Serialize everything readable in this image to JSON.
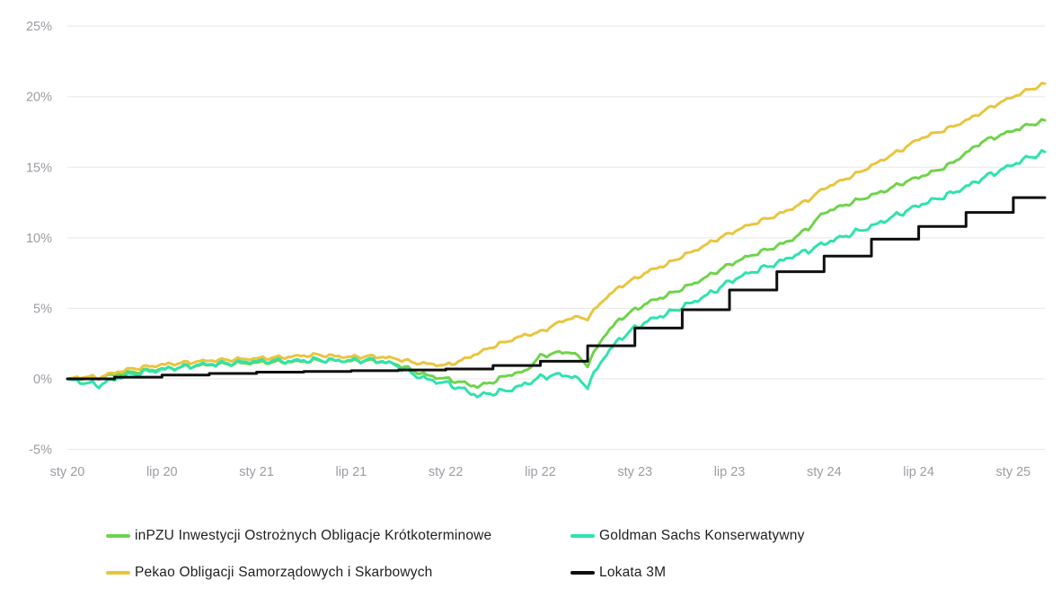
{
  "page": {
    "background": "#ffffff"
  },
  "chart_data": {
    "type": "line",
    "title": "",
    "grid": true,
    "legend_position": "bottom",
    "colors": {
      "grid_line": "#ebebeb",
      "tick_text": "#9b9ea3"
    },
    "x_axis": {
      "unit": "months since 2020-01",
      "xlim": [
        0,
        62
      ],
      "tick_positions": [
        0,
        6,
        12,
        18,
        24,
        30,
        36,
        42,
        48,
        54,
        60
      ],
      "tick_labels": [
        "sty 20",
        "lip 20",
        "sty 21",
        "lip 21",
        "sty 22",
        "lip 22",
        "sty 23",
        "lip 23",
        "sty 24",
        "lip 24",
        "sty 25"
      ]
    },
    "y_axis": {
      "unit": "%",
      "ylim": [
        -5,
        25
      ],
      "tick_values": [
        25,
        20,
        15,
        10,
        5,
        0,
        -5
      ],
      "tick_labels": [
        "25%",
        "20%",
        "15%",
        "10%",
        "5%",
        "0%",
        "-5%"
      ]
    },
    "months_x": [
      0,
      1,
      2,
      3,
      4,
      5,
      6,
      7,
      8,
      9,
      10,
      11,
      12,
      13,
      14,
      15,
      16,
      17,
      18,
      19,
      20,
      21,
      22,
      23,
      24,
      25,
      26,
      27,
      28,
      29,
      30,
      31,
      32,
      33,
      34,
      35,
      36,
      37,
      38,
      39,
      40,
      41,
      42,
      43,
      44,
      45,
      46,
      47,
      48,
      49,
      50,
      51,
      52,
      53,
      54,
      55,
      56,
      57,
      58,
      59,
      60,
      61,
      62
    ],
    "series": [
      {
        "name": "inPZU Inwestycji Ostrożnych Obligacje Krótkoterminowe",
        "color": "#6fd34b",
        "style": "line",
        "wiggle": 0.09,
        "values": [
          0,
          0.05,
          0.1,
          0.3,
          0.45,
          0.6,
          0.7,
          0.8,
          0.9,
          1.0,
          1.05,
          1.1,
          1.15,
          1.2,
          1.2,
          1.25,
          1.3,
          1.3,
          1.25,
          1.3,
          1.2,
          1.0,
          0.55,
          0.2,
          0.0,
          -0.25,
          -0.55,
          -0.2,
          0.3,
          0.5,
          1.6,
          1.85,
          1.9,
          1.0,
          3.0,
          4.2,
          4.9,
          5.5,
          5.9,
          6.4,
          6.9,
          7.5,
          8.1,
          8.6,
          9.0,
          9.4,
          9.9,
          10.7,
          11.8,
          12.2,
          12.6,
          13.0,
          13.4,
          13.9,
          14.3,
          14.7,
          15.2,
          16.0,
          16.8,
          17.2,
          17.6,
          18.0,
          18.3
        ]
      },
      {
        "name": "Goldman Sachs Konserwatywny",
        "color": "#2ee3ae",
        "style": "line",
        "wiggle": 0.12,
        "values": [
          0,
          -0.25,
          -0.45,
          0.0,
          0.3,
          0.5,
          0.65,
          0.8,
          0.95,
          1.05,
          1.1,
          1.2,
          1.25,
          1.3,
          1.25,
          1.3,
          1.35,
          1.3,
          1.3,
          1.35,
          1.25,
          0.9,
          0.3,
          -0.1,
          -0.3,
          -0.7,
          -1.2,
          -1.0,
          -0.8,
          -0.4,
          0.1,
          0.3,
          0.2,
          -0.5,
          1.5,
          2.8,
          3.6,
          4.2,
          4.6,
          5.1,
          5.6,
          6.2,
          6.9,
          7.4,
          7.8,
          8.2,
          8.7,
          9.1,
          9.6,
          10.0,
          10.4,
          10.8,
          11.3,
          11.8,
          12.3,
          12.7,
          13.1,
          13.6,
          14.2,
          14.7,
          15.2,
          15.7,
          16.05
        ]
      },
      {
        "name": "Pekao Obligacji Samorządowych i Skarbowych",
        "color": "#e9c53f",
        "style": "line",
        "wiggle": 0.08,
        "values": [
          0,
          0.15,
          0.1,
          0.45,
          0.7,
          0.85,
          1.0,
          1.1,
          1.2,
          1.3,
          1.35,
          1.4,
          1.45,
          1.5,
          1.55,
          1.65,
          1.7,
          1.6,
          1.55,
          1.6,
          1.55,
          1.4,
          1.15,
          1.05,
          0.95,
          1.3,
          1.8,
          2.3,
          2.7,
          3.1,
          3.3,
          3.9,
          4.35,
          4.3,
          5.6,
          6.5,
          7.1,
          7.7,
          8.1,
          8.7,
          9.2,
          9.8,
          10.3,
          10.8,
          11.2,
          11.6,
          12.1,
          12.7,
          13.5,
          14.0,
          14.5,
          15.1,
          15.7,
          16.3,
          17.0,
          17.4,
          17.8,
          18.3,
          18.9,
          19.5,
          20.0,
          20.5,
          20.9
        ]
      },
      {
        "name": "Lokata 3M",
        "color": "#0f0f0f",
        "style": "step",
        "wiggle": 0,
        "steps": [
          [
            0,
            0
          ],
          [
            3,
            0.12
          ],
          [
            6,
            0.27
          ],
          [
            9,
            0.38
          ],
          [
            12,
            0.48
          ],
          [
            15,
            0.53
          ],
          [
            18,
            0.58
          ],
          [
            21,
            0.63
          ],
          [
            24,
            0.7
          ],
          [
            27,
            0.95
          ],
          [
            30,
            1.25
          ],
          [
            33,
            2.35
          ],
          [
            36,
            3.6
          ],
          [
            39,
            4.9
          ],
          [
            42,
            6.3
          ],
          [
            45,
            7.6
          ],
          [
            48,
            8.7
          ],
          [
            51,
            9.9
          ],
          [
            54,
            10.8
          ],
          [
            57,
            11.8
          ],
          [
            60,
            12.85
          ],
          [
            62,
            12.85
          ]
        ]
      }
    ]
  }
}
